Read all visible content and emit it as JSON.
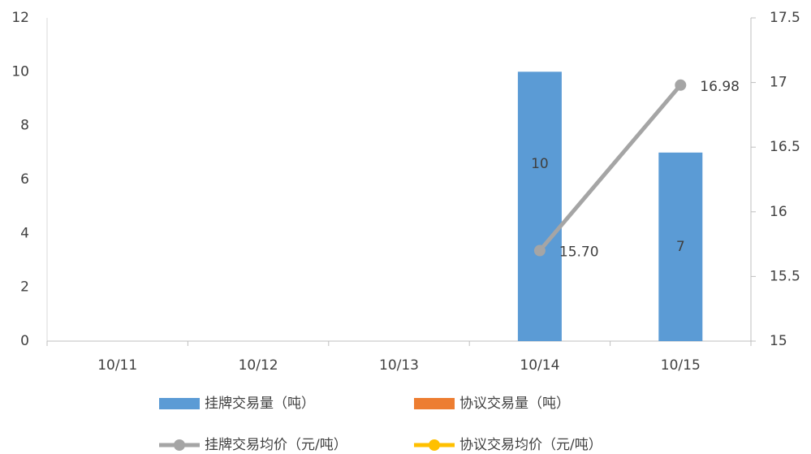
{
  "chart_data": {
    "type": "bar",
    "categories": [
      "10/11",
      "10/12",
      "10/13",
      "10/14",
      "10/15"
    ],
    "series": [
      {
        "name": "挂牌交易量（吨）",
        "type": "bar",
        "color": "#5b9bd5",
        "values": [
          null,
          null,
          null,
          10,
          7
        ]
      },
      {
        "name": "协议交易量（吨）",
        "type": "bar",
        "color": "#ed7d31",
        "values": [
          null,
          null,
          null,
          null,
          null
        ]
      },
      {
        "name": "挂牌交易均价（元/吨）",
        "type": "line",
        "axis": "y2",
        "color": "#a5a5a5",
        "values": [
          null,
          null,
          null,
          15.7,
          16.98
        ],
        "value_labels": [
          null,
          null,
          null,
          "15.70",
          "16.98"
        ]
      },
      {
        "name": "协议交易均价（元/吨）",
        "type": "line",
        "axis": "y2",
        "color": "#ffc000",
        "values": [
          null,
          null,
          null,
          null,
          null
        ]
      }
    ],
    "ylim": [
      0,
      12
    ],
    "yticks": [
      0,
      2,
      4,
      6,
      8,
      10,
      12
    ],
    "y2lim": [
      15,
      17.5
    ],
    "y2ticks": [
      15,
      15.5,
      16,
      16.5,
      17,
      17.5
    ],
    "legend": "bottom"
  }
}
